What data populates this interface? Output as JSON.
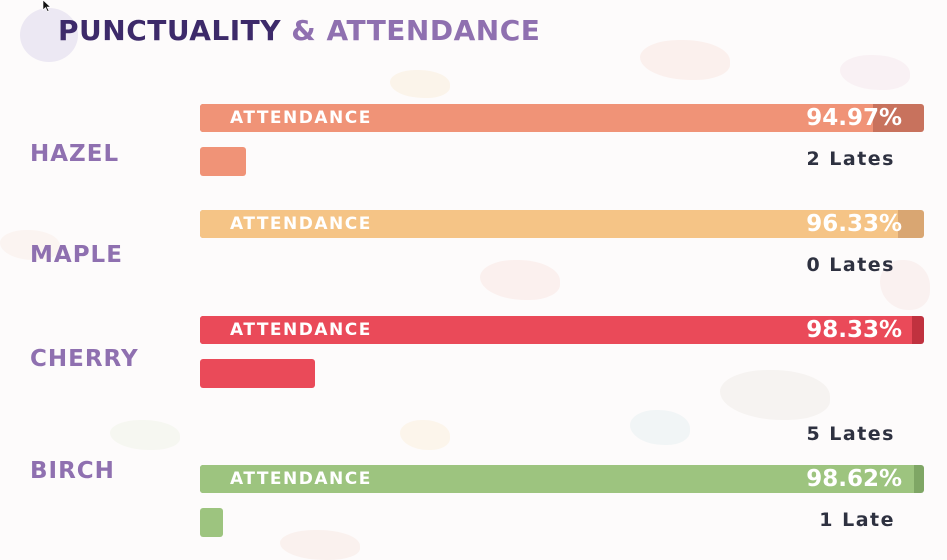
{
  "header": {
    "title_main": "PUNCTUALITY",
    "title_amp": "&",
    "title_sub": "ATTENDANCE"
  },
  "chart_data": {
    "type": "bar",
    "categories": [
      "HAZEL",
      "MAPLE",
      "CHERRY",
      "BIRCH"
    ],
    "bar_label": "ATTENDANCE",
    "attendance": [
      94.97,
      96.33,
      98.33,
      98.62
    ],
    "attendance_labels": [
      "94.97%",
      "96.33%",
      "98.33%",
      "98.62%"
    ],
    "lates": [
      2,
      0,
      5,
      1
    ],
    "late_labels": [
      "2 Lates",
      "0 Lates",
      "5 Lates",
      "1 Late"
    ],
    "colors": [
      "#f09377",
      "#f5c486",
      "#ea4a59",
      "#9dc47f"
    ],
    "tail_colors": [
      "#c8725d",
      "#d9a672",
      "#c0323f",
      "#7fa665"
    ],
    "ylim": [
      0,
      100
    ]
  }
}
